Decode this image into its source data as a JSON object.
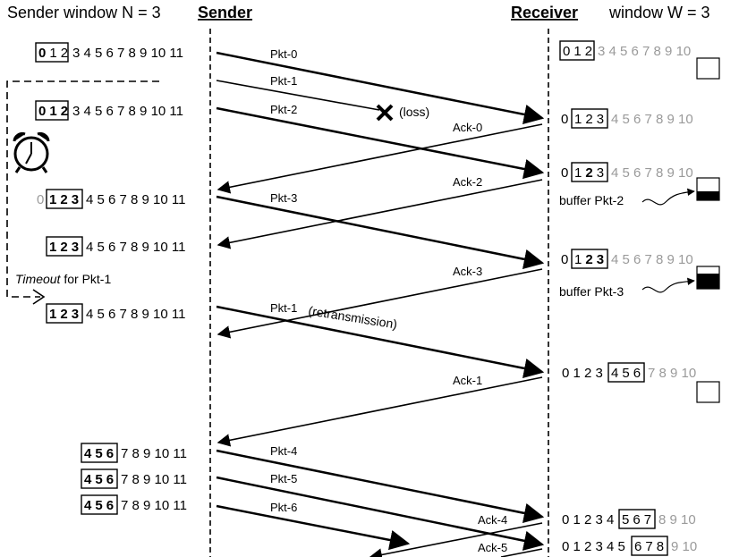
{
  "header": {
    "sender_window": "Sender window N = 3",
    "sender": "Sender",
    "receiver": "Receiver",
    "receiver_window": "window W = 3"
  },
  "packets": {
    "pkt0": "Pkt-0",
    "pkt1": "Pkt-1",
    "pkt2": "Pkt-2",
    "pkt3": "Pkt-3",
    "pkt1_retx": "Pkt-1",
    "pkt4": "Pkt-4",
    "pkt5": "Pkt-5",
    "pkt6": "Pkt-6"
  },
  "acks": {
    "ack0": "Ack-0",
    "ack2": "Ack-2",
    "ack3": "Ack-3",
    "ack1": "Ack-1",
    "ack4": "Ack-4",
    "ack5": "Ack-5"
  },
  "annotations": {
    "loss": "(loss)",
    "retransmission": "(retransmission)",
    "timeout_italic": "Timeout",
    "timeout_rest": " for Pkt-1",
    "buffer_pkt2": "buffer Pkt-2",
    "buffer_pkt3": "buffer Pkt-3"
  },
  "icons": {
    "clock": "alarm-clock-icon",
    "loss": "cross-icon"
  },
  "sender_rows": [
    {
      "prefix": "",
      "dim": "",
      "win": [
        "0",
        "1",
        "2"
      ],
      "rest": "3 4 5 6 7 8 9 10 11"
    },
    {
      "prefix": "",
      "dim": "",
      "win": [
        "0",
        "1",
        "2"
      ],
      "rest": "3 4 5 6 7 8 9 10 11"
    },
    {
      "prefix": "",
      "dim": "0",
      "win": [
        "1",
        "2",
        "3"
      ],
      "rest": "4 5 6 7 8 9 10 11"
    },
    {
      "prefix": "",
      "dim": "",
      "win": [
        "1",
        "2",
        "3"
      ],
      "rest": "4 5 6 7 8 9 10 11"
    },
    {
      "prefix": "",
      "dim": "",
      "win": [
        "1",
        "2",
        "3"
      ],
      "rest": "4 5 6 7 8 9 10 11"
    },
    {
      "prefix": "",
      "dim": "",
      "win": [
        "4",
        "5",
        "6"
      ],
      "rest": "7 8 9 10 11"
    },
    {
      "prefix": "",
      "dim": "",
      "win": [
        "4",
        "5",
        "6"
      ],
      "rest": "7 8 9 10 11"
    },
    {
      "prefix": "",
      "dim": "",
      "win": [
        "4",
        "5",
        "6"
      ],
      "rest": "7 8 9 10 11"
    }
  ],
  "receiver_rows": [
    {
      "prefix": "",
      "win": [
        "0",
        "1",
        "2"
      ],
      "rest": "3 4 5 6 7 8 9 10"
    },
    {
      "prefix": "0",
      "win": [
        "1",
        "2",
        "3"
      ],
      "rest": "4 5 6 7 8 9 10"
    },
    {
      "prefix": "0",
      "win": [
        "1",
        "2",
        "3"
      ],
      "rest": "4 5 6 7 8 9 10"
    },
    {
      "prefix": "0",
      "win": [
        "1",
        "2",
        "3"
      ],
      "rest": "4 5 6 7 8 9 10"
    },
    {
      "prefix": "0 1 2 3",
      "win": [
        "4",
        "5",
        "6"
      ],
      "rest": "7 8 9 10"
    },
    {
      "prefix": "0 1 2 3 4",
      "win": [
        "5",
        "6",
        "7"
      ],
      "rest": "8 9 10"
    },
    {
      "prefix": "0 1 2 3 4 5",
      "win": [
        "6",
        "7",
        "8"
      ],
      "rest": "9 10"
    }
  ],
  "colors": {
    "line": "#000000",
    "dim": "#9a9a9a",
    "background": "#ffffff"
  }
}
